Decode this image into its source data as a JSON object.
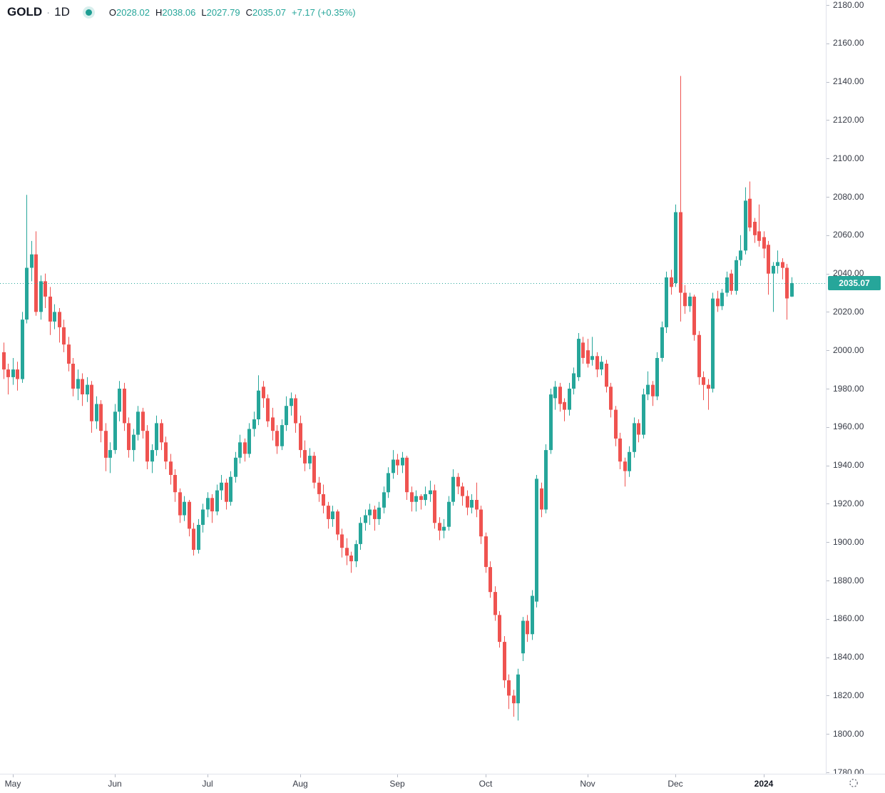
{
  "header": {
    "symbol": "GOLD",
    "separator": "·",
    "timeframe": "1D",
    "ohlc": {
      "o_label": "O",
      "o_value": "2028.02",
      "h_label": "H",
      "h_value": "2038.06",
      "l_label": "L",
      "l_value": "2027.79",
      "c_label": "C",
      "c_value": "2035.07"
    },
    "change": "+7.17 (+0.35%)"
  },
  "price_scale": {
    "max": 2180,
    "min": 1780,
    "step": 20,
    "decimals": 2,
    "current_price": 2035.07,
    "current_price_label": "2035.07"
  },
  "colors": {
    "up": "#26a69a",
    "down": "#ef5350",
    "background": "#ffffff",
    "axis_text": "#363a45",
    "axis_line": "#e0e3eb",
    "tick": "#b8bcc7",
    "price_line": "#26a69a",
    "badge_bg": "#26a69a",
    "badge_text": "#ffffff",
    "icon": "#6a6d78"
  },
  "chart_data": {
    "type": "candlestick",
    "title": "GOLD 1D",
    "ylim": [
      1780,
      2180
    ],
    "y_tick_step": 20,
    "grid": false,
    "legend_position": "top-left",
    "current_price": 2035.07,
    "x_axis_labels": [
      {
        "text": "May",
        "index": 2,
        "bold": false
      },
      {
        "text": "Jun",
        "index": 24,
        "bold": false
      },
      {
        "text": "Jul",
        "index": 44,
        "bold": false
      },
      {
        "text": "Aug",
        "index": 64,
        "bold": false
      },
      {
        "text": "Sep",
        "index": 85,
        "bold": false
      },
      {
        "text": "Oct",
        "index": 104,
        "bold": false
      },
      {
        "text": "Nov",
        "index": 126,
        "bold": false
      },
      {
        "text": "Dec",
        "index": 145,
        "bold": false
      },
      {
        "text": "2024",
        "index": 164,
        "bold": true
      }
    ],
    "ohlc_format": [
      "open",
      "high",
      "low",
      "close"
    ],
    "candles": [
      [
        1999,
        2004,
        1985,
        1990
      ],
      [
        1990,
        1993,
        1977,
        1986
      ],
      [
        1986,
        1996,
        1982,
        1990
      ],
      [
        1990,
        1994,
        1979,
        1985
      ],
      [
        1985,
        2020,
        1983,
        2016
      ],
      [
        2016,
        2081,
        2014,
        2043
      ],
      [
        2043,
        2057,
        2036,
        2050
      ],
      [
        2050,
        2062,
        2018,
        2020
      ],
      [
        2020,
        2039,
        2016,
        2036
      ],
      [
        2036,
        2040,
        2022,
        2028
      ],
      [
        2028,
        2033,
        2008,
        2015
      ],
      [
        2015,
        2024,
        2011,
        2020
      ],
      [
        2020,
        2022,
        2004,
        2012
      ],
      [
        2012,
        2016,
        1999,
        2003
      ],
      [
        2003,
        2007,
        1989,
        1993
      ],
      [
        1993,
        1996,
        1976,
        1980
      ],
      [
        1980,
        1990,
        1974,
        1985
      ],
      [
        1985,
        1988,
        1971,
        1977
      ],
      [
        1977,
        1986,
        1973,
        1982
      ],
      [
        1982,
        1984,
        1957,
        1963
      ],
      [
        1963,
        1976,
        1959,
        1972
      ],
      [
        1972,
        1974,
        1952,
        1958
      ],
      [
        1958,
        1962,
        1937,
        1944
      ],
      [
        1944,
        1952,
        1936,
        1948
      ],
      [
        1948,
        1972,
        1946,
        1968
      ],
      [
        1968,
        1984,
        1963,
        1980
      ],
      [
        1980,
        1983,
        1958,
        1962
      ],
      [
        1962,
        1965,
        1944,
        1948
      ],
      [
        1948,
        1959,
        1942,
        1956
      ],
      [
        1956,
        1971,
        1953,
        1968
      ],
      [
        1968,
        1970,
        1954,
        1958
      ],
      [
        1958,
        1961,
        1938,
        1942
      ],
      [
        1942,
        1951,
        1936,
        1948
      ],
      [
        1948,
        1966,
        1945,
        1962
      ],
      [
        1962,
        1964,
        1948,
        1952
      ],
      [
        1952,
        1955,
        1938,
        1942
      ],
      [
        1942,
        1946,
        1930,
        1935
      ],
      [
        1935,
        1938,
        1921,
        1926
      ],
      [
        1926,
        1928,
        1910,
        1914
      ],
      [
        1914,
        1924,
        1911,
        1921
      ],
      [
        1921,
        1922,
        1903,
        1907
      ],
      [
        1907,
        1910,
        1893,
        1896
      ],
      [
        1896,
        1912,
        1894,
        1909
      ],
      [
        1909,
        1920,
        1905,
        1917
      ],
      [
        1917,
        1926,
        1913,
        1923
      ],
      [
        1923,
        1925,
        1910,
        1916
      ],
      [
        1916,
        1930,
        1914,
        1927
      ],
      [
        1927,
        1935,
        1922,
        1931
      ],
      [
        1931,
        1933,
        1917,
        1921
      ],
      [
        1921,
        1937,
        1919,
        1934
      ],
      [
        1934,
        1947,
        1931,
        1944
      ],
      [
        1944,
        1956,
        1941,
        1952
      ],
      [
        1952,
        1954,
        1942,
        1946
      ],
      [
        1946,
        1962,
        1944,
        1959
      ],
      [
        1959,
        1968,
        1955,
        1964
      ],
      [
        1964,
        1987,
        1961,
        1979
      ],
      [
        1981,
        1984,
        1970,
        1975
      ],
      [
        1975,
        1977,
        1960,
        1963
      ],
      [
        1965,
        1970,
        1953,
        1958
      ],
      [
        1958,
        1961,
        1946,
        1950
      ],
      [
        1950,
        1964,
        1948,
        1961
      ],
      [
        1961,
        1976,
        1958,
        1971
      ],
      [
        1971,
        1978,
        1966,
        1975
      ],
      [
        1975,
        1977,
        1957,
        1962
      ],
      [
        1962,
        1966,
        1944,
        1948
      ],
      [
        1948,
        1953,
        1937,
        1941
      ],
      [
        1941,
        1949,
        1938,
        1945
      ],
      [
        1945,
        1947,
        1928,
        1931
      ],
      [
        1931,
        1934,
        1921,
        1925
      ],
      [
        1925,
        1930,
        1915,
        1919
      ],
      [
        1919,
        1921,
        1907,
        1912
      ],
      [
        1912,
        1919,
        1908,
        1916
      ],
      [
        1916,
        1917,
        1901,
        1904
      ],
      [
        1904,
        1907,
        1892,
        1897
      ],
      [
        1897,
        1902,
        1888,
        1893
      ],
      [
        1893,
        1895,
        1884,
        1890
      ],
      [
        1890,
        1901,
        1887,
        1899
      ],
      [
        1899,
        1913,
        1896,
        1910
      ],
      [
        1910,
        1917,
        1906,
        1914
      ],
      [
        1914,
        1920,
        1909,
        1917
      ],
      [
        1917,
        1919,
        1906,
        1912
      ],
      [
        1912,
        1921,
        1909,
        1918
      ],
      [
        1918,
        1929,
        1915,
        1926
      ],
      [
        1926,
        1939,
        1923,
        1936
      ],
      [
        1936,
        1948,
        1933,
        1943
      ],
      [
        1943,
        1946,
        1935,
        1940
      ],
      [
        1940,
        1947,
        1936,
        1944
      ],
      [
        1944,
        1945,
        1922,
        1926
      ],
      [
        1926,
        1929,
        1916,
        1921
      ],
      [
        1921,
        1927,
        1916,
        1924
      ],
      [
        1924,
        1925,
        1917,
        1922
      ],
      [
        1922,
        1929,
        1919,
        1925
      ],
      [
        1925,
        1932,
        1921,
        1927
      ],
      [
        1927,
        1930,
        1907,
        1910
      ],
      [
        1910,
        1913,
        1901,
        1906
      ],
      [
        1906,
        1912,
        1902,
        1908
      ],
      [
        1908,
        1924,
        1906,
        1921
      ],
      [
        1921,
        1938,
        1919,
        1934
      ],
      [
        1934,
        1936,
        1925,
        1929
      ],
      [
        1929,
        1931,
        1919,
        1924
      ],
      [
        1924,
        1927,
        1914,
        1918
      ],
      [
        1918,
        1925,
        1915,
        1922
      ],
      [
        1922,
        1931,
        1913,
        1917
      ],
      [
        1917,
        1919,
        1899,
        1903
      ],
      [
        1903,
        1905,
        1884,
        1887
      ],
      [
        1887,
        1890,
        1871,
        1874
      ],
      [
        1874,
        1877,
        1859,
        1862
      ],
      [
        1862,
        1864,
        1845,
        1848
      ],
      [
        1848,
        1851,
        1824,
        1828
      ],
      [
        1828,
        1831,
        1813,
        1820
      ],
      [
        1820,
        1823,
        1809,
        1816
      ],
      [
        1816,
        1834,
        1807,
        1831
      ],
      [
        1842,
        1861,
        1838,
        1859
      ],
      [
        1859,
        1862,
        1848,
        1852
      ],
      [
        1852,
        1875,
        1849,
        1872
      ],
      [
        1869,
        1935,
        1866,
        1933
      ],
      [
        1928,
        1931,
        1913,
        1917
      ],
      [
        1917,
        1951,
        1915,
        1948
      ],
      [
        1948,
        1980,
        1946,
        1977
      ],
      [
        1975,
        1984,
        1969,
        1981
      ],
      [
        1981,
        1983,
        1968,
        1972
      ],
      [
        1973,
        1975,
        1963,
        1969
      ],
      [
        1969,
        1983,
        1966,
        1980
      ],
      [
        1980,
        1991,
        1977,
        1988
      ],
      [
        1986,
        2009,
        1984,
        2006
      ],
      [
        2004,
        2007,
        1993,
        1996
      ],
      [
        2000,
        2006,
        1991,
        1993
      ],
      [
        1995,
        2007,
        1992,
        1997
      ],
      [
        1997,
        1999,
        1986,
        1990
      ],
      [
        1990,
        1997,
        1987,
        1994
      ],
      [
        1993,
        1995,
        1978,
        1981
      ],
      [
        1981,
        1983,
        1965,
        1969
      ],
      [
        1969,
        1971,
        1950,
        1954
      ],
      [
        1954,
        1957,
        1938,
        1942
      ],
      [
        1942,
        1944,
        1929,
        1937
      ],
      [
        1937,
        1950,
        1934,
        1947
      ],
      [
        1947,
        1965,
        1944,
        1962
      ],
      [
        1962,
        1964,
        1952,
        1956
      ],
      [
        1956,
        1980,
        1954,
        1977
      ],
      [
        1977,
        1989,
        1974,
        1982
      ],
      [
        1982,
        1984,
        1971,
        1976
      ],
      [
        1976,
        1999,
        1974,
        1996
      ],
      [
        1996,
        2015,
        1994,
        2012
      ],
      [
        2012,
        2041,
        2009,
        2038
      ],
      [
        2038,
        2042,
        2029,
        2033
      ],
      [
        2035,
        2076,
        2033,
        2072
      ],
      [
        2072,
        2143,
        2015,
        2030
      ],
      [
        2030,
        2034,
        2019,
        2023
      ],
      [
        2023,
        2030,
        2020,
        2028
      ],
      [
        2028,
        2029,
        2005,
        2008
      ],
      [
        2008,
        2010,
        1982,
        1986
      ],
      [
        1986,
        1989,
        1974,
        1982
      ],
      [
        1982,
        1985,
        1969,
        1980
      ],
      [
        1980,
        2030,
        1978,
        2027
      ],
      [
        2027,
        2031,
        2020,
        2023
      ],
      [
        2023,
        2032,
        2021,
        2030
      ],
      [
        2030,
        2041,
        2028,
        2038
      ],
      [
        2040,
        2042,
        2029,
        2031
      ],
      [
        2031,
        2049,
        2029,
        2047
      ],
      [
        2047,
        2060,
        2044,
        2052
      ],
      [
        2052,
        2085,
        2050,
        2078
      ],
      [
        2079,
        2088,
        2062,
        2064
      ],
      [
        2067,
        2069,
        2056,
        2060
      ],
      [
        2062,
        2076,
        2054,
        2057
      ],
      [
        2059,
        2062,
        2048,
        2053
      ],
      [
        2055,
        2057,
        2029,
        2040
      ],
      [
        2040,
        2046,
        2020,
        2044
      ],
      [
        2044,
        2052,
        2040,
        2046
      ],
      [
        2046,
        2048,
        2037,
        2043
      ],
      [
        2043,
        2045,
        2016,
        2027
      ],
      [
        2028.02,
        2038.06,
        2027.79,
        2035.07
      ]
    ]
  }
}
